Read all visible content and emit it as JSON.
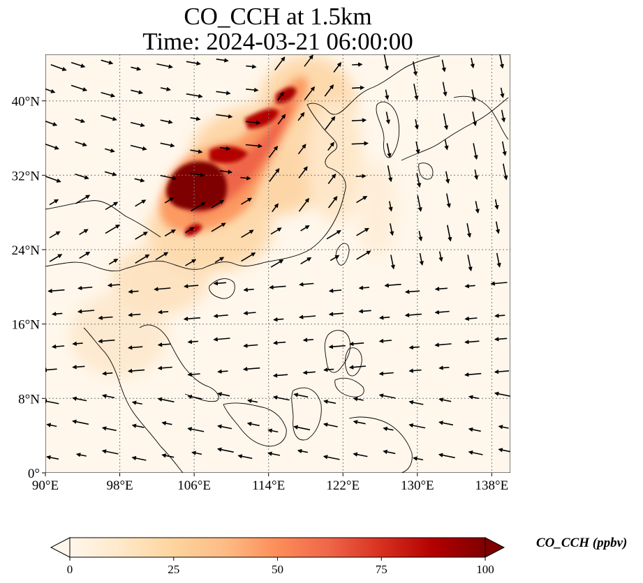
{
  "title": {
    "line1": "CO_CCH at 1.5km",
    "line2": "Time: 2024-03-21 06:00:00"
  },
  "map": {
    "projection": "PlateCarree",
    "lon_range": [
      90,
      140
    ],
    "lat_range": [
      0,
      45
    ],
    "lon_ticks": [
      90,
      98,
      106,
      114,
      122,
      130,
      138
    ],
    "lon_tick_labels": [
      "90°E",
      "98°E",
      "106°E",
      "114°E",
      "122°E",
      "130°E",
      "138°E"
    ],
    "lat_ticks": [
      0,
      8,
      16,
      24,
      32,
      40
    ],
    "lat_tick_labels": [
      "0°",
      "8°N",
      "16°N",
      "24°N",
      "32°N",
      "40°N"
    ],
    "gridlines": "dotted",
    "coastlines": true,
    "wind_vectors": true
  },
  "colorbar": {
    "label": "CO_CCH (ppbv)",
    "cmap": "OrRd",
    "range": [
      0,
      100
    ],
    "ticks": [
      0,
      25,
      50,
      75,
      100
    ],
    "tick_labels": [
      "0",
      "25",
      "50",
      "75",
      "100"
    ],
    "extend": "both",
    "colors": [
      "#fff7ec",
      "#fee8c8",
      "#fdd49e",
      "#fdbb84",
      "#fc8d59",
      "#ef6548",
      "#d7301f",
      "#b30000",
      "#7f0000"
    ]
  }
}
